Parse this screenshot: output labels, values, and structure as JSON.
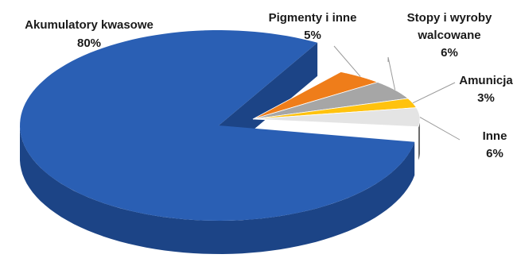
{
  "chart_data": {
    "type": "pie",
    "title": "",
    "slices": [
      {
        "label": "Akumulatory kwasowe",
        "value": 80,
        "value_label": "80%",
        "color": "#2a5fb4",
        "side_color": "#1c4486",
        "exploded": false
      },
      {
        "label": "Pigmenty i inne",
        "value": 5,
        "value_label": "5%",
        "color": "#ef7d1a",
        "side_color": "#b85b0d",
        "exploded": true
      },
      {
        "label": "Stopy i wyroby walcowane",
        "value": 6,
        "value_label": "6%",
        "color": "#a6a6a6",
        "side_color": "#737373",
        "exploded": true
      },
      {
        "label": "Amunicja",
        "value": 3,
        "value_label": "3%",
        "color": "#ffc20e",
        "side_color": "#c59100",
        "exploded": true
      },
      {
        "label": "Inne",
        "value": 6,
        "value_label": "6%",
        "color": "#e4e4e4",
        "side_color": "#6b6b6b",
        "exploded": true
      }
    ]
  }
}
